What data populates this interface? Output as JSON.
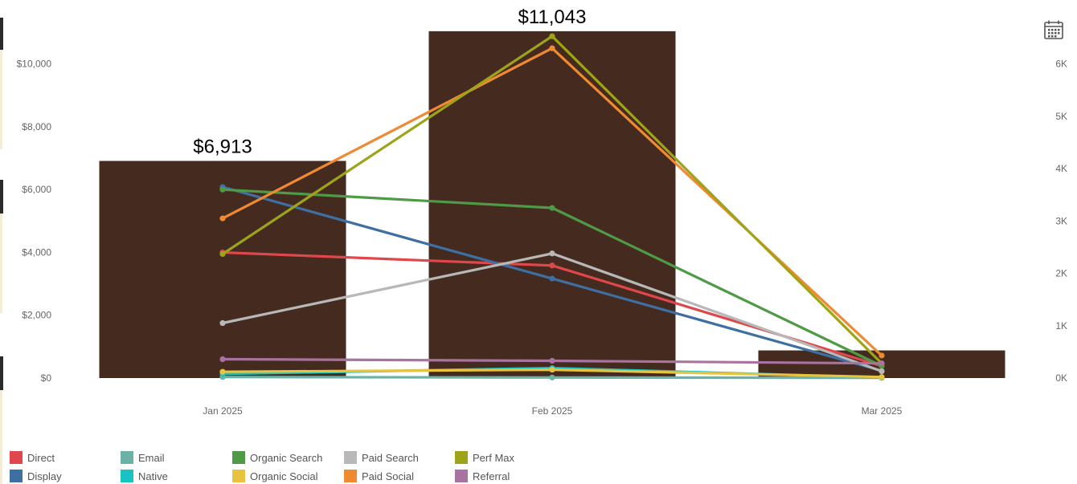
{
  "chart_data": {
    "type": "bar",
    "categories": [
      "Jan 2025",
      "Feb 2025",
      "Mar 2025"
    ],
    "bars": {
      "values": [
        6913,
        11043,
        880
      ],
      "labels": [
        "$6,913",
        "$11,043",
        ""
      ],
      "color": "#452b1f"
    },
    "left_axis": {
      "ylim": [
        0,
        11500
      ],
      "ticks": [
        0,
        2000,
        4000,
        6000,
        8000,
        10000
      ],
      "tick_labels": [
        "$0",
        "$2,000",
        "$4,000",
        "$6,000",
        "$8,000",
        "$10,000"
      ]
    },
    "right_axis": {
      "ylim": [
        0,
        6900
      ],
      "ticks": [
        0,
        1000,
        2000,
        3000,
        4000,
        5000,
        6000
      ],
      "tick_labels": [
        "0K",
        "1K",
        "2K",
        "3K",
        "4K",
        "5K",
        "6K"
      ]
    },
    "series": [
      {
        "name": "Direct",
        "color": "#e0474c",
        "values": [
          2400,
          2150,
          230
        ]
      },
      {
        "name": "Display",
        "color": "#3e6fa3",
        "values": [
          3650,
          1900,
          140
        ]
      },
      {
        "name": "Email",
        "color": "#6ab1a8",
        "values": [
          20,
          10,
          5
        ]
      },
      {
        "name": "Native",
        "color": "#18c3c2",
        "values": [
          80,
          190,
          10
        ]
      },
      {
        "name": "Organic Search",
        "color": "#4e9a46",
        "values": [
          3600,
          3250,
          230
        ]
      },
      {
        "name": "Organic Social",
        "color": "#e9c240",
        "values": [
          120,
          160,
          20
        ]
      },
      {
        "name": "Paid Search",
        "color": "#b8b8b8",
        "values": [
          1050,
          2380,
          130
        ]
      },
      {
        "name": "Paid Social",
        "color": "#f08a32",
        "values": [
          3050,
          6300,
          430
        ]
      },
      {
        "name": "Perf Max",
        "color": "#9ea41a",
        "values": [
          2370,
          6530,
          280
        ]
      },
      {
        "name": "Referral",
        "color": "#a8739f",
        "values": [
          360,
          330,
          280
        ]
      }
    ],
    "grid": false,
    "legend_position": "bottom-left"
  },
  "icons": {
    "calendar": "calendar-icon"
  }
}
